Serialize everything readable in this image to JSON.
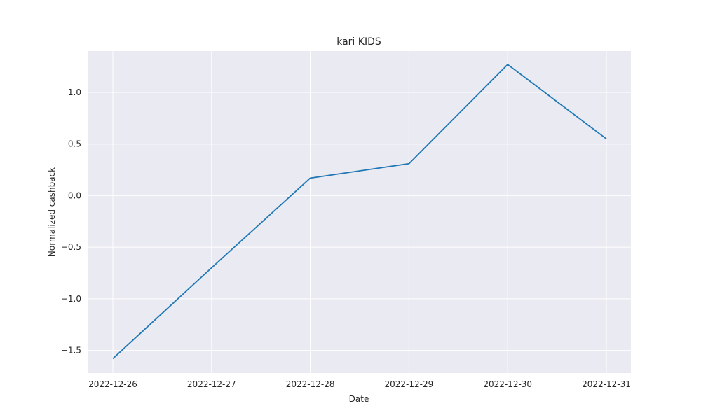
{
  "chart_data": {
    "type": "line",
    "title": "kari KIDS",
    "xlabel": "Date",
    "ylabel": "Normalized cashback",
    "x": [
      "2022-12-26",
      "2022-12-27",
      "2022-12-28",
      "2022-12-29",
      "2022-12-30",
      "2022-12-31"
    ],
    "series": [
      {
        "values": [
          -1.58,
          -0.7,
          0.17,
          0.31,
          1.27,
          0.55
        ],
        "color": "#1f77b4"
      }
    ],
    "x_ticks": [
      "2022-12-26",
      "2022-12-27",
      "2022-12-28",
      "2022-12-29",
      "2022-12-30",
      "2022-12-31"
    ],
    "y_ticks": [
      -1.5,
      -1.0,
      -0.5,
      0.0,
      0.5,
      1.0
    ],
    "y_tick_labels": [
      "−1.5",
      "−1.0",
      "−0.5",
      "0.0",
      "0.5",
      "1.0"
    ],
    "ylim": [
      -1.72,
      1.4
    ],
    "grid": true,
    "style": {
      "plot_background": "#eaeaf2",
      "grid_color": "#ffffff"
    }
  }
}
